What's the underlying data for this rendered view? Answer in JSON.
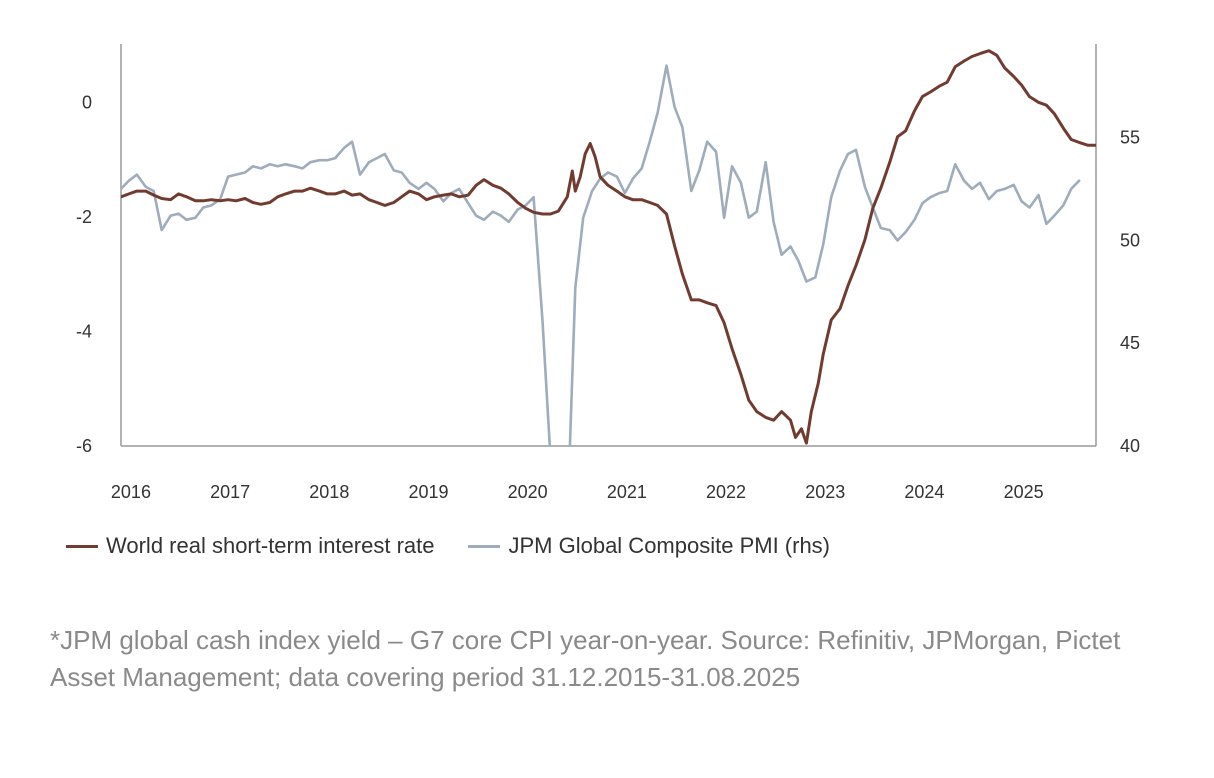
{
  "chart_data": {
    "type": "line",
    "title": "",
    "xlabel": "",
    "ylabel": "",
    "y2label": "",
    "x_ticks": [
      "2016",
      "2017",
      "2018",
      "2019",
      "2020",
      "2021",
      "2022",
      "2023",
      "2024",
      "2025"
    ],
    "xlim": [
      2015.92,
      2025.75
    ],
    "ylim": [
      -6,
      1
    ],
    "y_ticks": [
      0,
      -2,
      -4,
      -6
    ],
    "y2lim": [
      40,
      59.5
    ],
    "y2_ticks": [
      55,
      50,
      45,
      40
    ],
    "grid": false,
    "legend_position": "bottom",
    "series": [
      {
        "name": "World real short-term interest rate",
        "axis": "left",
        "color": "#723b30",
        "points": [
          [
            2015.92,
            -1.65
          ],
          [
            2016.0,
            -1.6
          ],
          [
            2016.08,
            -1.55
          ],
          [
            2016.17,
            -1.55
          ],
          [
            2016.25,
            -1.62
          ],
          [
            2016.33,
            -1.68
          ],
          [
            2016.42,
            -1.7
          ],
          [
            2016.5,
            -1.6
          ],
          [
            2016.58,
            -1.65
          ],
          [
            2016.67,
            -1.72
          ],
          [
            2016.75,
            -1.72
          ],
          [
            2016.83,
            -1.7
          ],
          [
            2016.92,
            -1.72
          ],
          [
            2017.0,
            -1.7
          ],
          [
            2017.08,
            -1.72
          ],
          [
            2017.17,
            -1.68
          ],
          [
            2017.25,
            -1.75
          ],
          [
            2017.33,
            -1.78
          ],
          [
            2017.42,
            -1.75
          ],
          [
            2017.5,
            -1.65
          ],
          [
            2017.58,
            -1.6
          ],
          [
            2017.67,
            -1.55
          ],
          [
            2017.75,
            -1.55
          ],
          [
            2017.83,
            -1.5
          ],
          [
            2017.92,
            -1.55
          ],
          [
            2018.0,
            -1.6
          ],
          [
            2018.08,
            -1.6
          ],
          [
            2018.17,
            -1.55
          ],
          [
            2018.25,
            -1.62
          ],
          [
            2018.33,
            -1.6
          ],
          [
            2018.42,
            -1.7
          ],
          [
            2018.5,
            -1.75
          ],
          [
            2018.58,
            -1.8
          ],
          [
            2018.67,
            -1.75
          ],
          [
            2018.75,
            -1.65
          ],
          [
            2018.83,
            -1.55
          ],
          [
            2018.92,
            -1.6
          ],
          [
            2019.0,
            -1.7
          ],
          [
            2019.08,
            -1.65
          ],
          [
            2019.17,
            -1.62
          ],
          [
            2019.25,
            -1.6
          ],
          [
            2019.33,
            -1.65
          ],
          [
            2019.42,
            -1.62
          ],
          [
            2019.5,
            -1.45
          ],
          [
            2019.58,
            -1.35
          ],
          [
            2019.67,
            -1.45
          ],
          [
            2019.75,
            -1.5
          ],
          [
            2019.83,
            -1.6
          ],
          [
            2019.92,
            -1.75
          ],
          [
            2020.0,
            -1.85
          ],
          [
            2020.08,
            -1.92
          ],
          [
            2020.17,
            -1.95
          ],
          [
            2020.25,
            -1.95
          ],
          [
            2020.33,
            -1.9
          ],
          [
            2020.42,
            -1.65
          ],
          [
            2020.47,
            -1.2
          ],
          [
            2020.5,
            -1.55
          ],
          [
            2020.55,
            -1.3
          ],
          [
            2020.6,
            -0.9
          ],
          [
            2020.65,
            -0.72
          ],
          [
            2020.7,
            -0.95
          ],
          [
            2020.75,
            -1.3
          ],
          [
            2020.83,
            -1.45
          ],
          [
            2020.92,
            -1.55
          ],
          [
            2021.0,
            -1.65
          ],
          [
            2021.08,
            -1.7
          ],
          [
            2021.17,
            -1.7
          ],
          [
            2021.25,
            -1.75
          ],
          [
            2021.33,
            -1.8
          ],
          [
            2021.42,
            -1.95
          ],
          [
            2021.5,
            -2.5
          ],
          [
            2021.58,
            -3.0
          ],
          [
            2021.67,
            -3.45
          ],
          [
            2021.75,
            -3.45
          ],
          [
            2021.83,
            -3.5
          ],
          [
            2021.92,
            -3.55
          ],
          [
            2022.0,
            -3.85
          ],
          [
            2022.08,
            -4.3
          ],
          [
            2022.17,
            -4.75
          ],
          [
            2022.25,
            -5.2
          ],
          [
            2022.33,
            -5.4
          ],
          [
            2022.42,
            -5.5
          ],
          [
            2022.5,
            -5.55
          ],
          [
            2022.58,
            -5.4
          ],
          [
            2022.67,
            -5.55
          ],
          [
            2022.72,
            -5.85
          ],
          [
            2022.78,
            -5.7
          ],
          [
            2022.83,
            -5.95
          ],
          [
            2022.88,
            -5.4
          ],
          [
            2022.95,
            -4.9
          ],
          [
            2023.0,
            -4.4
          ],
          [
            2023.08,
            -3.8
          ],
          [
            2023.17,
            -3.6
          ],
          [
            2023.25,
            -3.2
          ],
          [
            2023.33,
            -2.85
          ],
          [
            2023.42,
            -2.4
          ],
          [
            2023.5,
            -1.85
          ],
          [
            2023.58,
            -1.5
          ],
          [
            2023.67,
            -1.05
          ],
          [
            2023.75,
            -0.6
          ],
          [
            2023.83,
            -0.5
          ],
          [
            2023.92,
            -0.15
          ],
          [
            2024.0,
            0.1
          ],
          [
            2024.08,
            0.18
          ],
          [
            2024.17,
            0.28
          ],
          [
            2024.25,
            0.35
          ],
          [
            2024.33,
            0.62
          ],
          [
            2024.42,
            0.72
          ],
          [
            2024.5,
            0.8
          ],
          [
            2024.58,
            0.85
          ],
          [
            2024.67,
            0.9
          ],
          [
            2024.75,
            0.82
          ],
          [
            2024.83,
            0.6
          ],
          [
            2024.92,
            0.45
          ],
          [
            2025.0,
            0.3
          ],
          [
            2025.08,
            0.1
          ],
          [
            2025.17,
            0.0
          ],
          [
            2025.25,
            -0.05
          ],
          [
            2025.33,
            -0.2
          ],
          [
            2025.42,
            -0.45
          ],
          [
            2025.5,
            -0.65
          ],
          [
            2025.58,
            -0.7
          ],
          [
            2025.67,
            -0.75
          ],
          [
            2025.75,
            -0.75
          ]
        ]
      },
      {
        "name": "JPM Global Composite PMI (rhs)",
        "axis": "right",
        "color": "#9eacbb",
        "points": [
          [
            2015.92,
            52.5
          ],
          [
            2016.0,
            52.9
          ],
          [
            2016.08,
            53.2
          ],
          [
            2016.17,
            52.6
          ],
          [
            2016.25,
            52.4
          ],
          [
            2016.33,
            50.5
          ],
          [
            2016.42,
            51.2
          ],
          [
            2016.5,
            51.3
          ],
          [
            2016.58,
            51.0
          ],
          [
            2016.67,
            51.1
          ],
          [
            2016.75,
            51.6
          ],
          [
            2016.83,
            51.7
          ],
          [
            2016.92,
            52.0
          ],
          [
            2017.0,
            53.1
          ],
          [
            2017.08,
            53.2
          ],
          [
            2017.17,
            53.3
          ],
          [
            2017.25,
            53.6
          ],
          [
            2017.33,
            53.5
          ],
          [
            2017.42,
            53.7
          ],
          [
            2017.5,
            53.6
          ],
          [
            2017.58,
            53.7
          ],
          [
            2017.67,
            53.6
          ],
          [
            2017.75,
            53.5
          ],
          [
            2017.83,
            53.8
          ],
          [
            2017.92,
            53.9
          ],
          [
            2018.0,
            53.9
          ],
          [
            2018.08,
            54.0
          ],
          [
            2018.17,
            54.5
          ],
          [
            2018.25,
            54.8
          ],
          [
            2018.33,
            53.2
          ],
          [
            2018.42,
            53.8
          ],
          [
            2018.5,
            54.0
          ],
          [
            2018.58,
            54.2
          ],
          [
            2018.67,
            53.4
          ],
          [
            2018.75,
            53.3
          ],
          [
            2018.83,
            52.8
          ],
          [
            2018.92,
            52.5
          ],
          [
            2019.0,
            52.8
          ],
          [
            2019.08,
            52.5
          ],
          [
            2019.17,
            51.9
          ],
          [
            2019.25,
            52.3
          ],
          [
            2019.33,
            52.5
          ],
          [
            2019.42,
            51.8
          ],
          [
            2019.5,
            51.2
          ],
          [
            2019.58,
            51.0
          ],
          [
            2019.67,
            51.4
          ],
          [
            2019.75,
            51.2
          ],
          [
            2019.83,
            50.9
          ],
          [
            2019.92,
            51.5
          ],
          [
            2020.0,
            51.7
          ],
          [
            2020.08,
            52.1
          ],
          [
            2020.17,
            46.1
          ],
          [
            2020.25,
            39.4
          ],
          [
            2020.33,
            26.2
          ],
          [
            2020.42,
            36.3
          ],
          [
            2020.5,
            47.7
          ],
          [
            2020.58,
            51.1
          ],
          [
            2020.67,
            52.4
          ],
          [
            2020.75,
            53.0
          ],
          [
            2020.83,
            53.3
          ],
          [
            2020.92,
            53.1
          ],
          [
            2021.0,
            52.3
          ],
          [
            2021.08,
            53.0
          ],
          [
            2021.17,
            53.5
          ],
          [
            2021.25,
            54.8
          ],
          [
            2021.33,
            56.2
          ],
          [
            2021.42,
            58.5
          ],
          [
            2021.5,
            56.5
          ],
          [
            2021.58,
            55.5
          ],
          [
            2021.67,
            52.4
          ],
          [
            2021.75,
            53.4
          ],
          [
            2021.83,
            54.8
          ],
          [
            2021.92,
            54.3
          ],
          [
            2022.0,
            51.1
          ],
          [
            2022.08,
            53.6
          ],
          [
            2022.17,
            52.8
          ],
          [
            2022.25,
            51.1
          ],
          [
            2022.33,
            51.4
          ],
          [
            2022.42,
            53.8
          ],
          [
            2022.5,
            50.9
          ],
          [
            2022.58,
            49.3
          ],
          [
            2022.67,
            49.7
          ],
          [
            2022.75,
            49.0
          ],
          [
            2022.83,
            48.0
          ],
          [
            2022.92,
            48.2
          ],
          [
            2023.0,
            49.8
          ],
          [
            2023.08,
            52.1
          ],
          [
            2023.17,
            53.4
          ],
          [
            2023.25,
            54.2
          ],
          [
            2023.33,
            54.4
          ],
          [
            2023.42,
            52.6
          ],
          [
            2023.5,
            51.6
          ],
          [
            2023.58,
            50.6
          ],
          [
            2023.67,
            50.5
          ],
          [
            2023.75,
            50.0
          ],
          [
            2023.83,
            50.4
          ],
          [
            2023.92,
            51.0
          ],
          [
            2024.0,
            51.8
          ],
          [
            2024.08,
            52.1
          ],
          [
            2024.17,
            52.3
          ],
          [
            2024.25,
            52.4
          ],
          [
            2024.33,
            53.7
          ],
          [
            2024.42,
            52.9
          ],
          [
            2024.5,
            52.5
          ],
          [
            2024.58,
            52.8
          ],
          [
            2024.67,
            52.0
          ],
          [
            2024.75,
            52.4
          ],
          [
            2024.83,
            52.5
          ],
          [
            2024.92,
            52.7
          ],
          [
            2025.0,
            51.9
          ],
          [
            2025.08,
            51.6
          ],
          [
            2025.17,
            52.2
          ],
          [
            2025.25,
            50.8
          ],
          [
            2025.33,
            51.2
          ],
          [
            2025.42,
            51.7
          ],
          [
            2025.5,
            52.5
          ],
          [
            2025.58,
            52.9
          ]
        ]
      }
    ]
  },
  "legend": {
    "items": [
      {
        "label": "World real short-term interest rate",
        "color": "#723b30"
      },
      {
        "label": "JPM Global Composite PMI (rhs)",
        "color": "#9eacbb"
      }
    ]
  },
  "footnote": "*JPM global cash index yield – G7 core CPI year-on-year. Source: Refinitiv, JPMorgan, Pictet Asset Management; data covering period 31.12.2015-31.08.2025",
  "colors": {
    "axis": "#999999",
    "tick_text": "#333333",
    "footnote_text": "#8a8a8a"
  }
}
